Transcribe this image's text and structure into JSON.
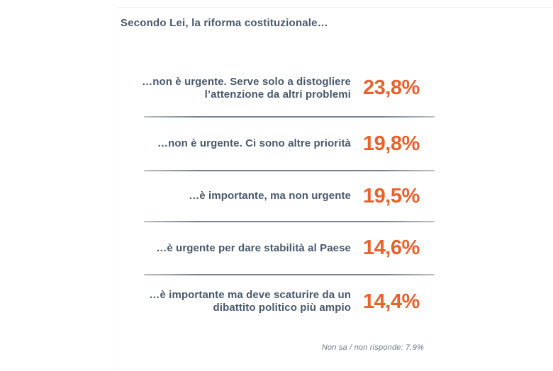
{
  "page": {
    "background_color": "#ffffff",
    "text_color": "#47586B",
    "accent_color": "#E7622C",
    "divider_color": "#79828F",
    "footnote_color": "#68798B"
  },
  "title": "Secondo Lei, la riforma costituzionale…",
  "rows": [
    {
      "label": "…non è urgente. Serve solo a distogliere l’attenzione da altri problemi",
      "value": "23,8%"
    },
    {
      "label": "…non è urgente. Ci sono altre priorità",
      "value": "19,8%"
    },
    {
      "label": "…è importante, ma non urgente",
      "value": "19,5%"
    },
    {
      "label": "…è urgente per dare stabilità al Paese",
      "value": "14,6%"
    },
    {
      "label": "…è importante ma deve scaturire da un dibattito politico più ampio",
      "value": "14,4%"
    }
  ],
  "footnote": "Non sa / non risponde: 7,9%",
  "chart_data": {
    "type": "table",
    "title": "Secondo Lei, la riforma costituzionale…",
    "categories": [
      "…non è urgente. Serve solo a distogliere l’attenzione da altri problemi",
      "…non è urgente. Ci sono altre priorità",
      "…è importante, ma non urgente",
      "…è urgente per dare stabilità al Paese",
      "…è importante ma deve scaturire da un dibattito politico più ampio"
    ],
    "values": [
      23.8,
      19.8,
      19.5,
      14.6,
      14.4
    ],
    "value_unit": "percent",
    "value_labels": [
      "23,8%",
      "19,8%",
      "19,5%",
      "14,6%",
      "14,4%"
    ],
    "footnote": "Non sa / non risponde: 7,9%",
    "footnote_value": 7.9,
    "legend_position": "none",
    "grid": false
  }
}
